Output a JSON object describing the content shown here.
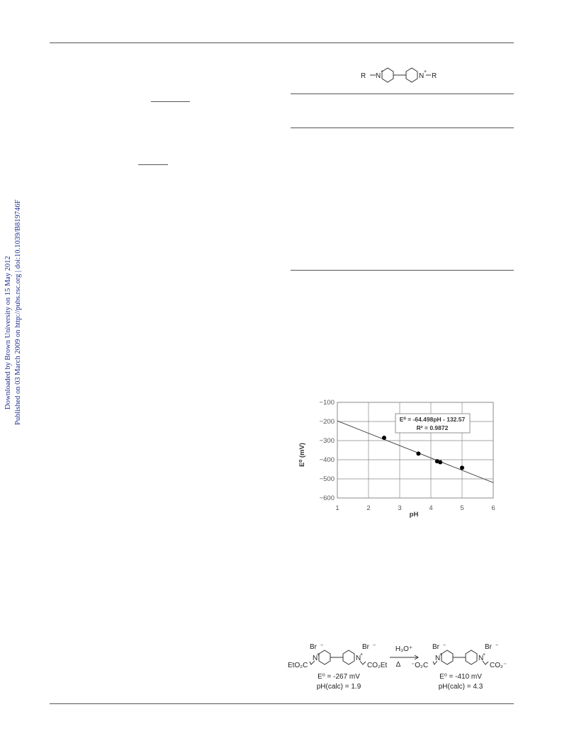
{
  "side_note": {
    "line1": "Downloaded by Brown University on 15 May 2012",
    "line2": "Published on 03 March 2009 on http://pubs.rsc.org | doi:10.1039/B819746F"
  },
  "structure_top": {
    "left_group": "R",
    "right_group": "R",
    "charge": "+"
  },
  "chart_data": {
    "type": "scatter",
    "x": [
      2.5,
      3.6,
      4.2,
      4.3,
      5.0
    ],
    "y": [
      -285,
      -368,
      -408,
      -413,
      -442
    ],
    "fit_line": {
      "slope": -64.498,
      "intercept": -132.57
    },
    "xlim": [
      1,
      6
    ],
    "ylim": [
      -600,
      -100
    ],
    "x_ticks": [
      "1",
      "2",
      "3",
      "4",
      "5",
      "6"
    ],
    "y_ticks": [
      "-100",
      "-200",
      "-300",
      "-400",
      "-500",
      "-600"
    ],
    "xlabel": "pH",
    "ylabel": "E⁰ (mV)",
    "annotation": {
      "equation": "E⁰ = -64.498pH - 132.57",
      "r_squared": "R² = 0.9872"
    },
    "grid": true
  },
  "scheme": {
    "reactant": {
      "counterion": "Br",
      "substituent": "EtO₂C",
      "substituent_right": "CO₂Et",
      "potential": "E⁰ = -267 mV",
      "ph": "pH(calc) = 1.9"
    },
    "reagent": {
      "above": "H₃O⁺",
      "below": "Δ"
    },
    "product": {
      "counterion": "Br",
      "substituent": "⁻O₂C",
      "substituent_right": "CO₂⁻",
      "potential": "E⁰ = -410 mV",
      "ph": "pH(calc) = 4.3"
    }
  }
}
